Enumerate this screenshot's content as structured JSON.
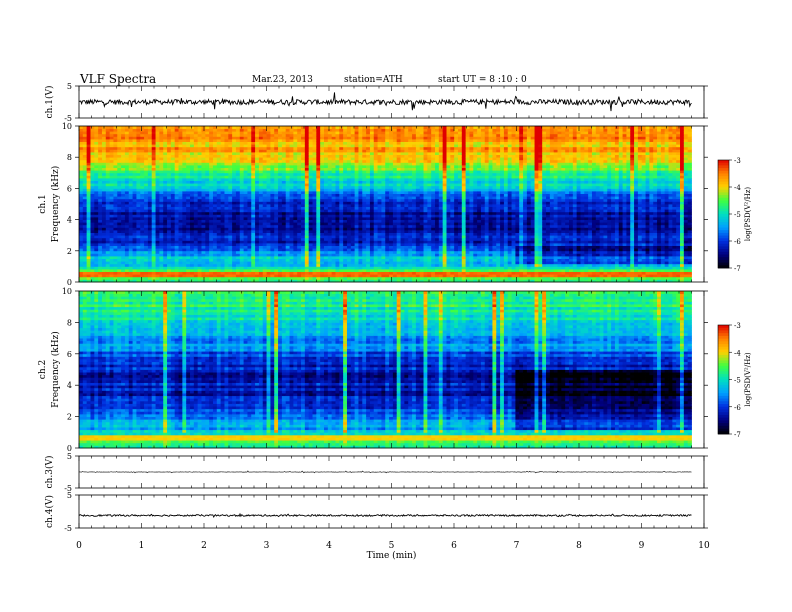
{
  "header": {
    "title": "VLF Spectra",
    "date": "Mar.23, 2013",
    "station": "station=ATH",
    "start": "start UT =  8 :10 : 0"
  },
  "colorbar": {
    "label": "log(PSD(V²/Hz)",
    "ticks": [
      "-3",
      "-4",
      "-5",
      "-6",
      "-7"
    ],
    "colors": [
      "#ffffff",
      "#e00000",
      "#ff8000",
      "#ffd000",
      "#40ff40",
      "#00e0c0",
      "#00a0ff",
      "#0030e0",
      "#000080",
      "#000000"
    ]
  },
  "chart_data": [
    {
      "type": "line",
      "name": "ch.1 waveform",
      "ylabel": "ch.1(V)",
      "yticks": [
        "5",
        "-5"
      ],
      "ylim": [
        -5,
        5
      ],
      "xlim": [
        0,
        10
      ],
      "x_end": 9.8,
      "baseline": 0,
      "noise_amplitude": 0.8,
      "spike_amplitude": 2.5
    },
    {
      "type": "heatmap",
      "name": "ch.1 spectrogram",
      "ylabel": "ch.1\nFrequency (kHz)",
      "yticks": [
        "0",
        "2",
        "4",
        "6",
        "8",
        "10"
      ],
      "ylim": [
        0,
        10
      ],
      "xlim": [
        0,
        10
      ],
      "x_end": 9.8,
      "zlim": [
        -7,
        -3
      ],
      "zlabel": "log(PSD(V²/Hz)",
      "profile": [
        {
          "f": 0,
          "z": -4.8
        },
        {
          "f": 0.3,
          "z": -4.6
        },
        {
          "f": 0.6,
          "z": -4.2
        },
        {
          "f": 1.0,
          "z": -5.1
        },
        {
          "f": 1.5,
          "z": -5.2
        },
        {
          "f": 2.0,
          "z": -5.6
        },
        {
          "f": 2.5,
          "z": -6.3
        },
        {
          "f": 3.0,
          "z": -6.0
        },
        {
          "f": 3.5,
          "z": -6.3
        },
        {
          "f": 4.0,
          "z": -6.2
        },
        {
          "f": 4.5,
          "z": -6.2
        },
        {
          "f": 5.0,
          "z": -6.0
        },
        {
          "f": 5.5,
          "z": -5.8
        },
        {
          "f": 6.0,
          "z": -5.4
        },
        {
          "f": 6.5,
          "z": -5.0
        },
        {
          "f": 7.0,
          "z": -4.7
        },
        {
          "f": 7.5,
          "z": -4.4
        },
        {
          "f": 8.0,
          "z": -4.0
        },
        {
          "f": 8.5,
          "z": -3.8
        },
        {
          "f": 9.0,
          "z": -3.7
        },
        {
          "f": 9.5,
          "z": -3.6
        },
        {
          "f": 10.0,
          "z": -3.6
        }
      ],
      "quiet_interval": {
        "t_start": 7.0,
        "t_end": 9.8,
        "f_max": 2.4,
        "delta_z": -0.7
      },
      "hot_band": {
        "f": 0.5,
        "z": -3.4
      }
    },
    {
      "type": "heatmap",
      "name": "ch.2 spectrogram",
      "ylabel": "ch.2\nFrequency (kHz)",
      "yticks": [
        "0",
        "2",
        "4",
        "6",
        "8",
        "10"
      ],
      "ylim": [
        0,
        10
      ],
      "xlim": [
        0,
        10
      ],
      "x_end": 9.8,
      "zlim": [
        -7,
        -3
      ],
      "zlabel": "log(PSD(V²/Hz)",
      "profile": [
        {
          "f": 0,
          "z": -5.0
        },
        {
          "f": 0.3,
          "z": -4.8
        },
        {
          "f": 0.6,
          "z": -4.6
        },
        {
          "f": 1.0,
          "z": -5.3
        },
        {
          "f": 1.5,
          "z": -5.4
        },
        {
          "f": 2.0,
          "z": -5.6
        },
        {
          "f": 2.5,
          "z": -5.9
        },
        {
          "f": 3.0,
          "z": -6.2
        },
        {
          "f": 3.5,
          "z": -6.3
        },
        {
          "f": 4.0,
          "z": -6.2
        },
        {
          "f": 4.5,
          "z": -6.3
        },
        {
          "f": 5.0,
          "z": -6.2
        },
        {
          "f": 5.5,
          "z": -6.0
        },
        {
          "f": 6.0,
          "z": -5.8
        },
        {
          "f": 6.5,
          "z": -5.7
        },
        {
          "f": 7.0,
          "z": -5.4
        },
        {
          "f": 7.5,
          "z": -5.2
        },
        {
          "f": 8.0,
          "z": -5.0
        },
        {
          "f": 8.5,
          "z": -4.9
        },
        {
          "f": 9.0,
          "z": -4.8
        },
        {
          "f": 9.5,
          "z": -4.7
        },
        {
          "f": 10.0,
          "z": -4.7
        }
      ],
      "quiet_interval": {
        "t_start": 7.0,
        "t_end": 9.8,
        "f_max": 5.0,
        "delta_z": -0.6
      },
      "hot_band": {
        "f": 0.7,
        "z": -4.0
      }
    },
    {
      "type": "line",
      "name": "ch.3 waveform",
      "ylabel": "ch.3(V)",
      "yticks": [
        "5",
        "-5"
      ],
      "ylim": [
        -5,
        5
      ],
      "xlim": [
        0,
        10
      ],
      "x_end": 9.8,
      "baseline": 0,
      "noise_amplitude": 0.05,
      "spike_amplitude": 0.3
    },
    {
      "type": "line",
      "name": "ch.4 waveform",
      "ylabel": "ch.4(V)",
      "yticks": [
        "5",
        "-5"
      ],
      "ylim": [
        -5,
        5
      ],
      "xlim": [
        0,
        10
      ],
      "x_end": 9.8,
      "baseline": -1.2,
      "noise_amplitude": 0.25,
      "spike_amplitude": 0.3
    }
  ],
  "xaxis": {
    "label": "Time (min)",
    "ticks": [
      "0",
      "1",
      "2",
      "3",
      "4",
      "5",
      "6",
      "7",
      "8",
      "9",
      "10"
    ]
  }
}
